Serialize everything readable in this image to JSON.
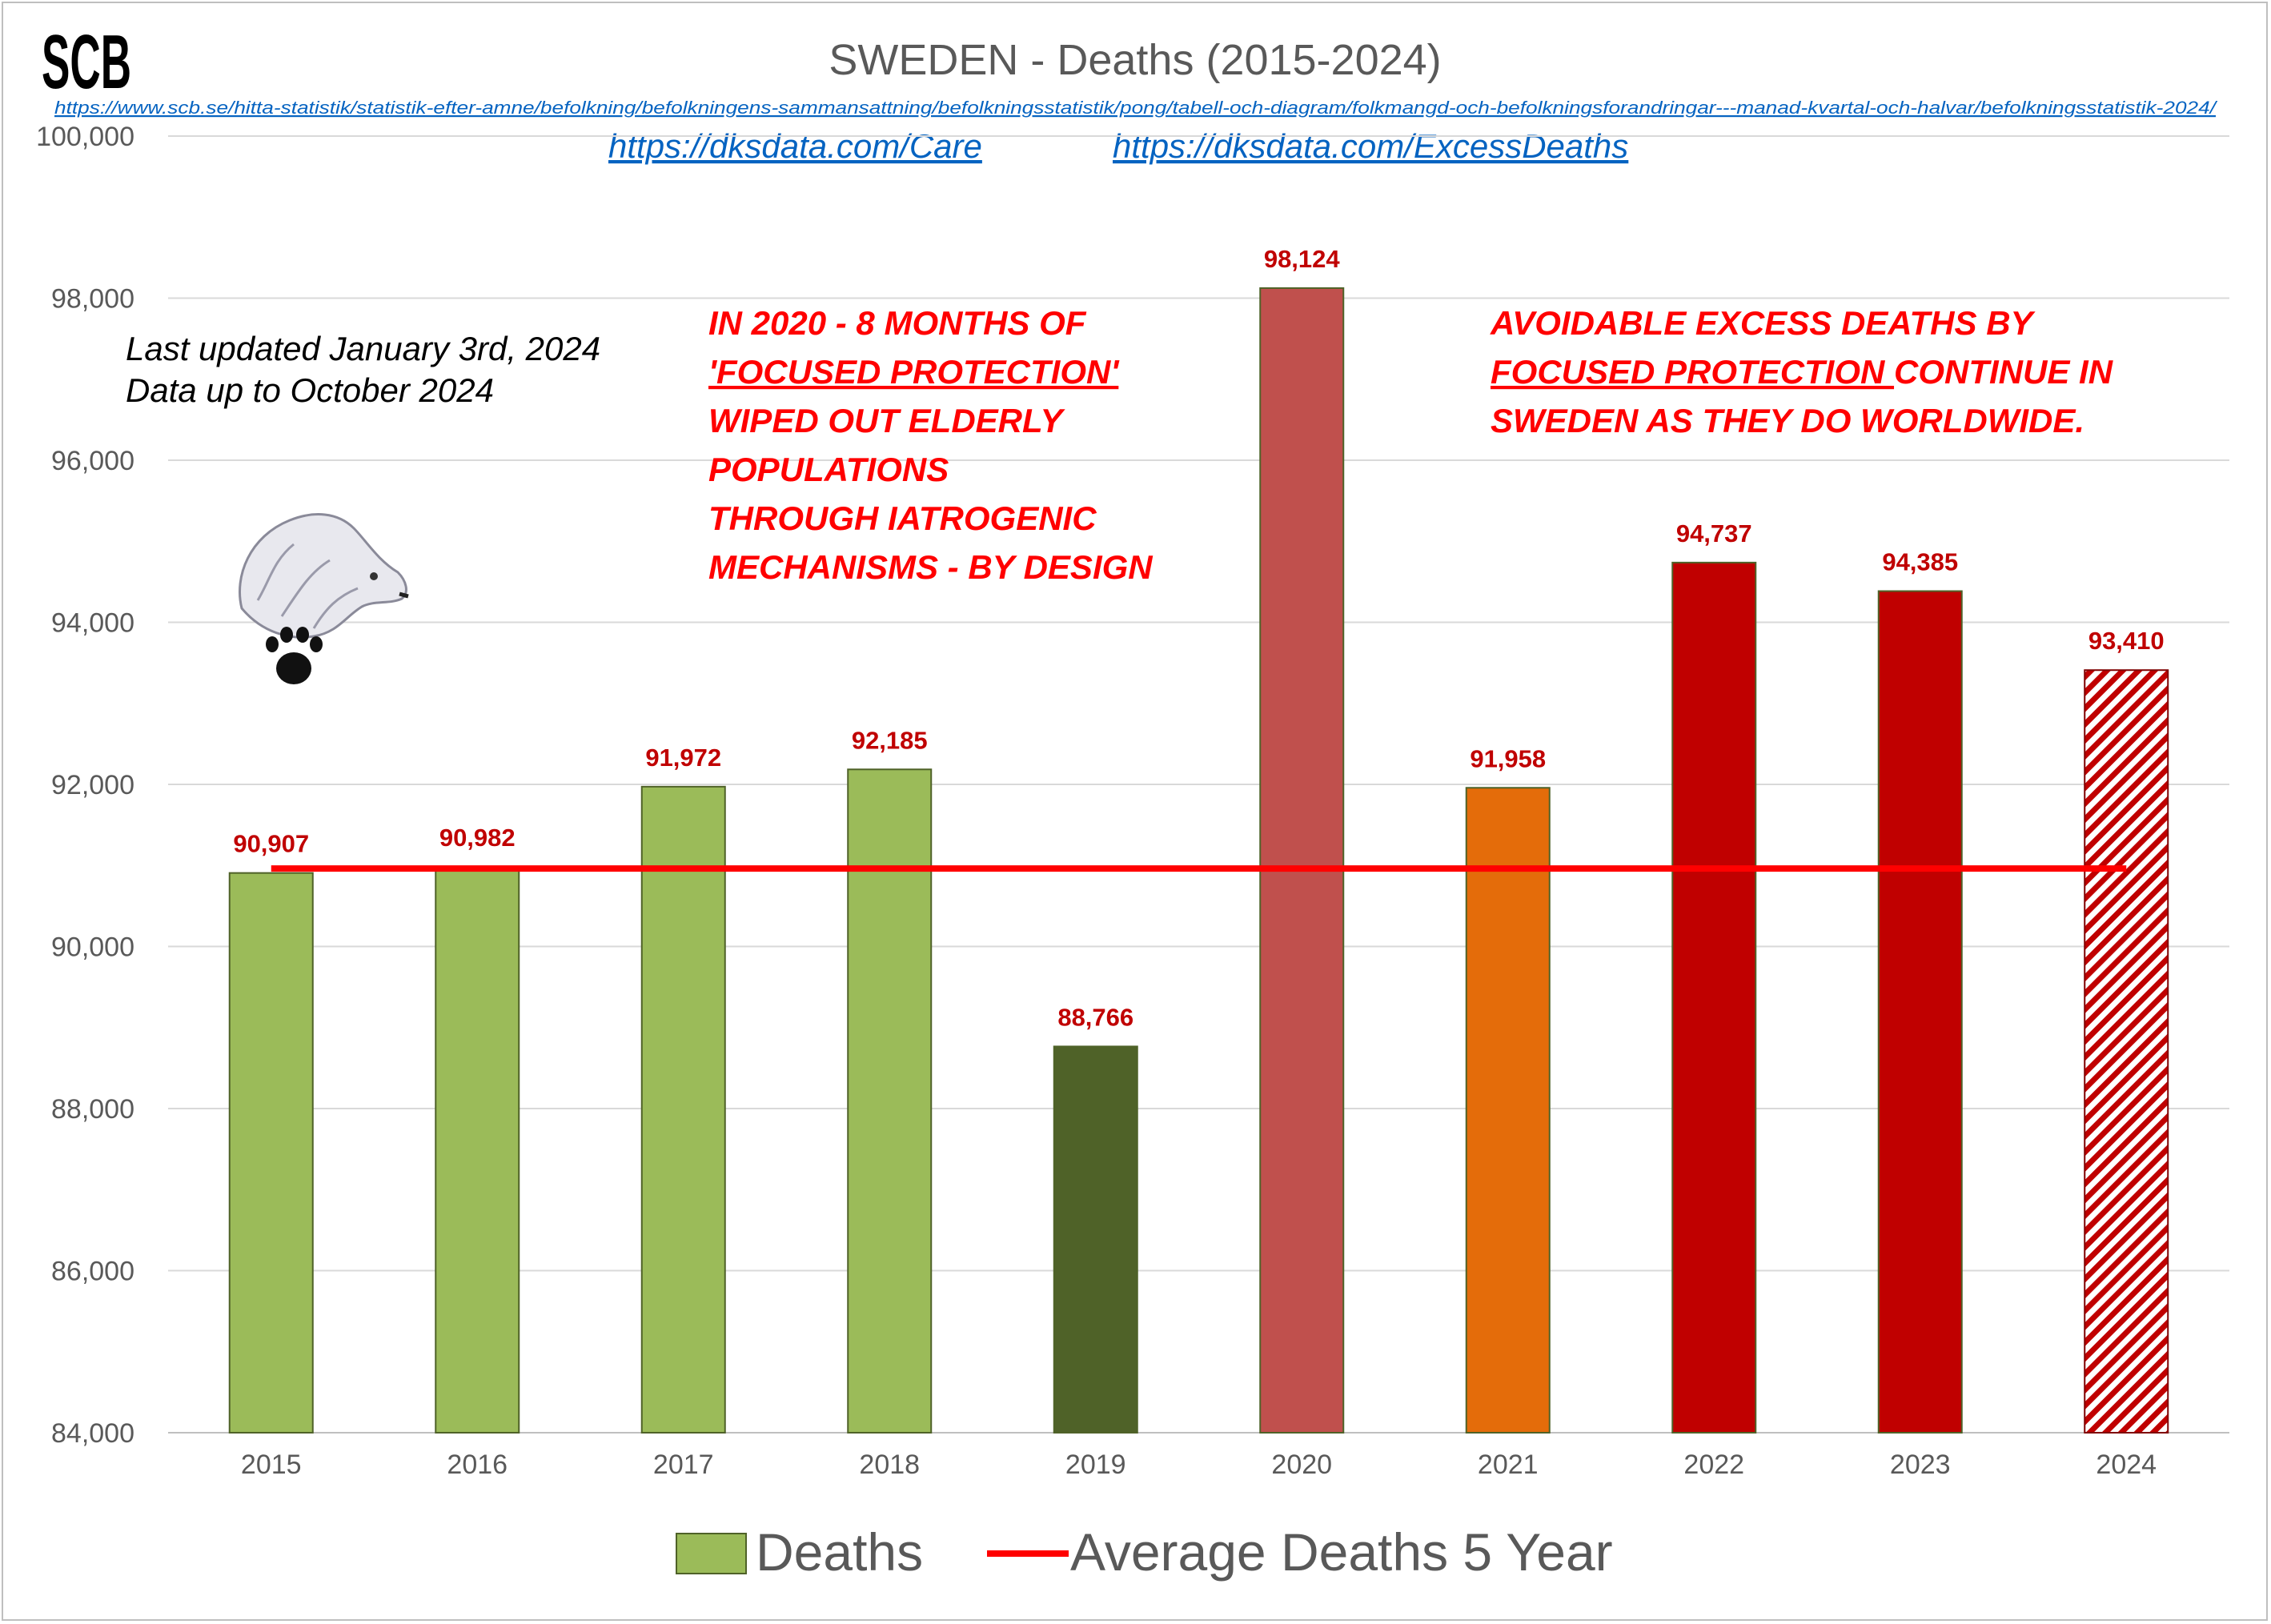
{
  "logo": "SCB",
  "chart_data": {
    "type": "bar",
    "title": "SWEDEN - Deaths (2015-2024)",
    "categories": [
      "2015",
      "2016",
      "2017",
      "2018",
      "2019",
      "2020",
      "2021",
      "2022",
      "2023",
      "2024"
    ],
    "series": [
      {
        "name": "Deaths",
        "type": "bar",
        "values": [
          90907,
          90982,
          91972,
          92185,
          88766,
          98124,
          91958,
          94737,
          94385,
          93410
        ],
        "data_labels": [
          "90,907",
          "90,982",
          "91,972",
          "92,185",
          "88,766",
          "98,124",
          "91,958",
          "94,737",
          "94,385",
          "93,410"
        ],
        "colors": [
          "#9bbb59",
          "#9bbb59",
          "#9bbb59",
          "#9bbb59",
          "#4f6228",
          "#c0504d",
          "#e46c0a",
          "#c00000",
          "#c00000",
          "hatch-red"
        ],
        "border_color": "#4f6228"
      },
      {
        "name": "Average Deaths 5 Year",
        "type": "line",
        "values": [
          90962,
          90962,
          90962,
          90962,
          90962,
          90962,
          90962,
          90962,
          90962,
          90962
        ],
        "color": "#ff0000"
      }
    ],
    "ylim": [
      84000,
      100000
    ],
    "yticks": [
      84000,
      86000,
      88000,
      90000,
      92000,
      94000,
      96000,
      98000,
      100000
    ],
    "ytick_labels": [
      "84,000",
      "86,000",
      "88,000",
      "90,000",
      "92,000",
      "94,000",
      "96,000",
      "98,000",
      "100,000"
    ],
    "grid": true,
    "legend": "bottom",
    "legend_labels": [
      "Deaths",
      "Average Deaths 5 Year"
    ]
  },
  "source_url": "https://www.scb.se/hitta-statistik/statistik-efter-amne/befolkning/befolkningens-sammansattning/befolkningsstatistik/pong/tabell-och-diagram/folkmangd-och-befolkningsforandringar---manad-kvartal-och-halvar/befolkningsstatistik-2024/",
  "links": {
    "care": "https://dksdata.com/Care",
    "excess": "https://dksdata.com/ExcessDeaths"
  },
  "notes": {
    "line1": "Last updated January 3rd, 2024",
    "line2": "Data up to October 2024"
  },
  "annotation_left": {
    "line1": "IN 2020 - 8 MONTHS OF",
    "line2": "'FOCUSED PROTECTION'",
    "line3": "WIPED OUT  ELDERLY",
    "line4": "POPULATIONS",
    "line5": "THROUGH IATROGENIC",
    "line6": "MECHANISMS - BY DESIGN"
  },
  "annotation_right": {
    "line1": "AVOIDABLE EXCESS DEATHS BY",
    "line2_underlined": "FOCUSED PROTECTION ",
    "line2_rest": "CONTINUE IN",
    "line3": "SWEDEN AS THEY DO WORLDWIDE."
  },
  "colors": {
    "bar_green": "#9bbb59",
    "bar_dark_green": "#4f6228",
    "bar_2020": "#c0504d",
    "bar_orange": "#e46c0a",
    "bar_red": "#c00000",
    "average_line": "#ff0000",
    "annotation_red": "#ff0000",
    "data_label": "#c00000",
    "link_blue": "#0563c1"
  }
}
